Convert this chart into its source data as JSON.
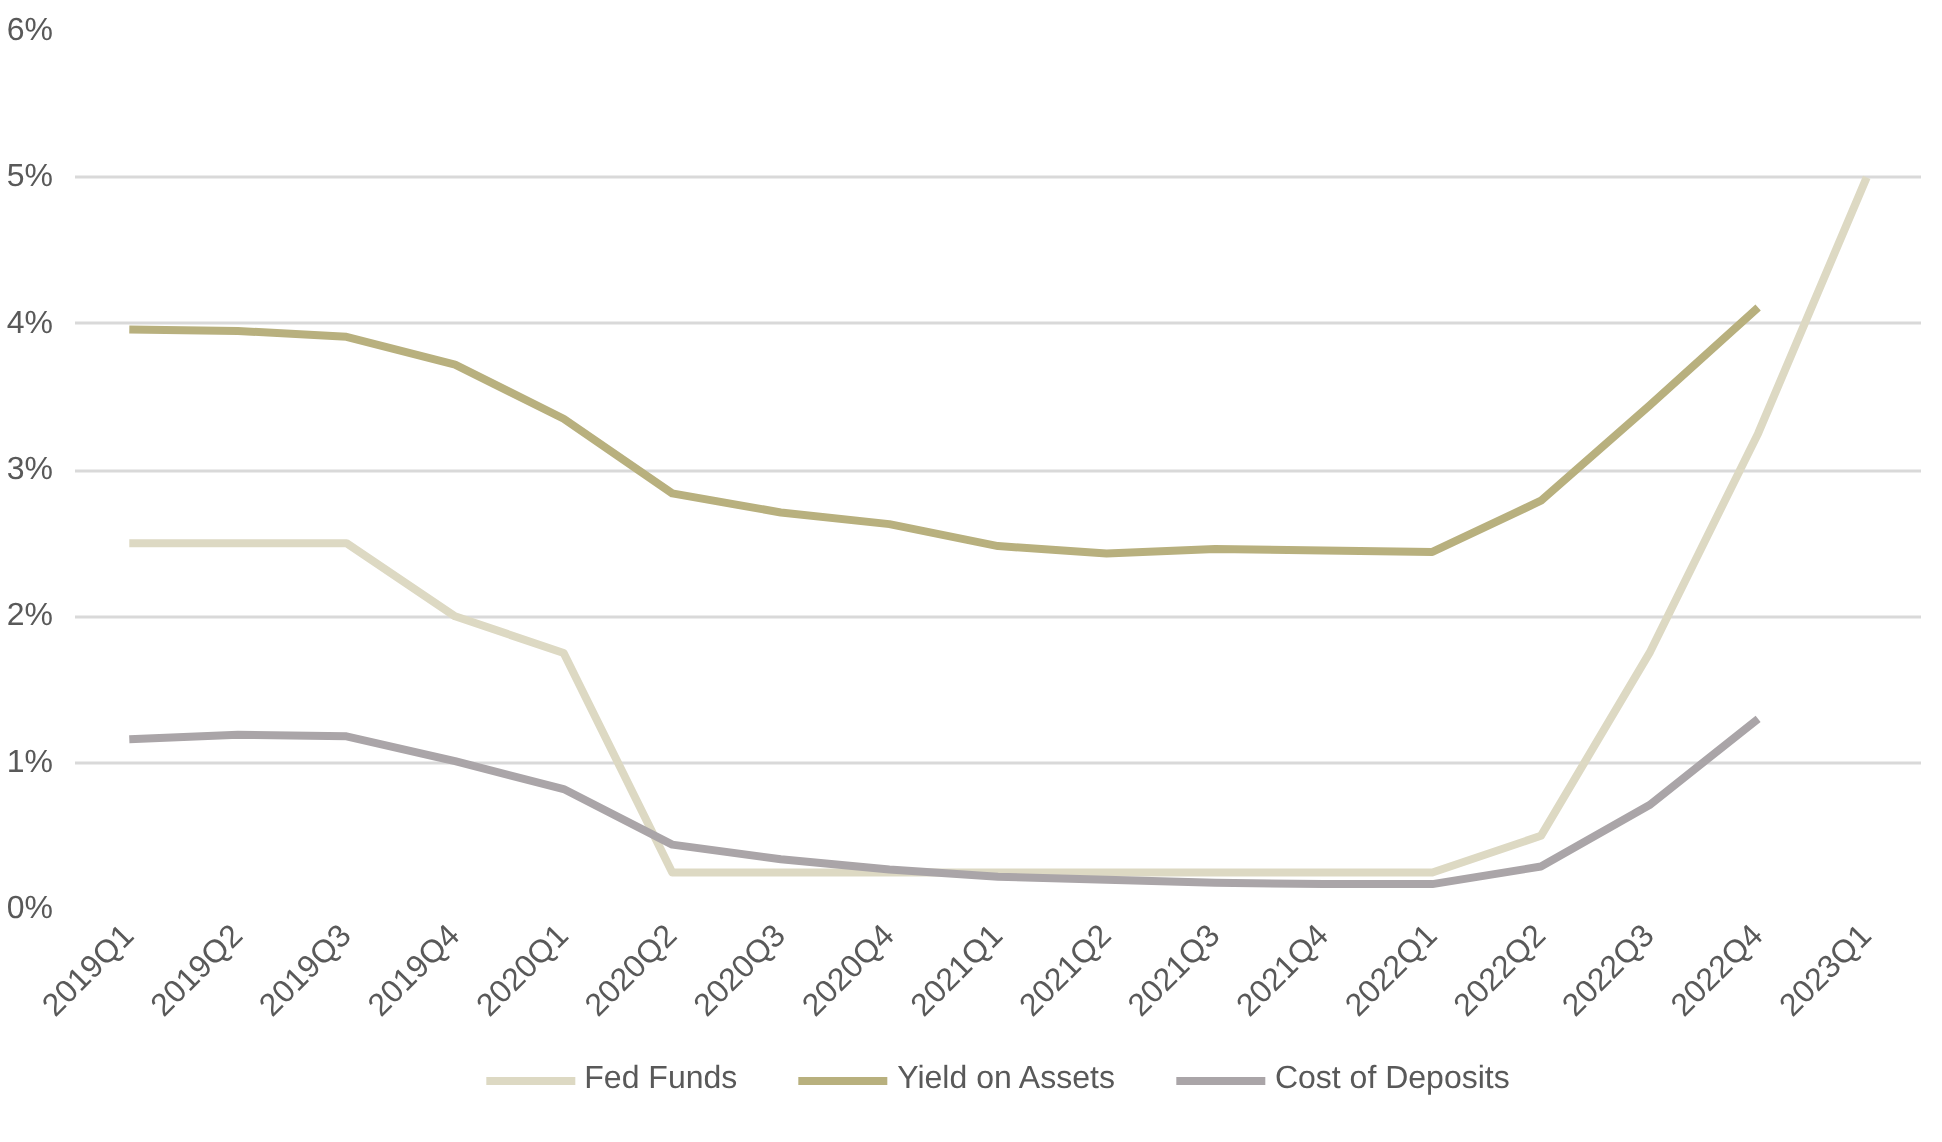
{
  "chart_data": {
    "type": "line",
    "categories": [
      "2019Q1",
      "2019Q2",
      "2019Q3",
      "2019Q4",
      "2020Q1",
      "2020Q2",
      "2020Q3",
      "2020Q4",
      "2021Q1",
      "2021Q2",
      "2021Q3",
      "2021Q4",
      "2022Q1",
      "2022Q2",
      "2022Q3",
      "2022Q4",
      "2023Q1"
    ],
    "series": [
      {
        "name": "Fed Funds",
        "color": "#ddd9c3",
        "values": [
          2.5,
          2.5,
          2.5,
          2.0,
          1.75,
          0.25,
          0.25,
          0.25,
          0.25,
          0.25,
          0.25,
          0.25,
          0.25,
          0.5,
          1.75,
          3.25,
          5.0
        ]
      },
      {
        "name": "Yield on Assets",
        "color": "#b8b07e",
        "values": [
          3.96,
          3.95,
          3.91,
          3.72,
          3.35,
          2.84,
          2.71,
          2.63,
          2.48,
          2.43,
          2.46,
          2.45,
          2.44,
          2.79,
          3.44,
          4.11,
          null
        ]
      },
      {
        "name": "Cost of Deposits",
        "color": "#aaa5a8",
        "values": [
          1.16,
          1.19,
          1.18,
          1.01,
          0.82,
          0.44,
          0.34,
          0.27,
          0.22,
          0.2,
          0.18,
          0.17,
          0.17,
          0.29,
          0.71,
          1.3,
          null
        ]
      }
    ],
    "ylim": [
      0,
      6
    ],
    "yticks": [
      {
        "value": 0,
        "label": "0%"
      },
      {
        "value": 1,
        "label": "1%"
      },
      {
        "value": 2,
        "label": "2%"
      },
      {
        "value": 3,
        "label": "3%"
      },
      {
        "value": 4,
        "label": "4%"
      },
      {
        "value": 5,
        "label": "5%"
      },
      {
        "value": 6,
        "label": "6%"
      }
    ],
    "grid": "y",
    "legend": "bottom",
    "line_style": "solid"
  }
}
